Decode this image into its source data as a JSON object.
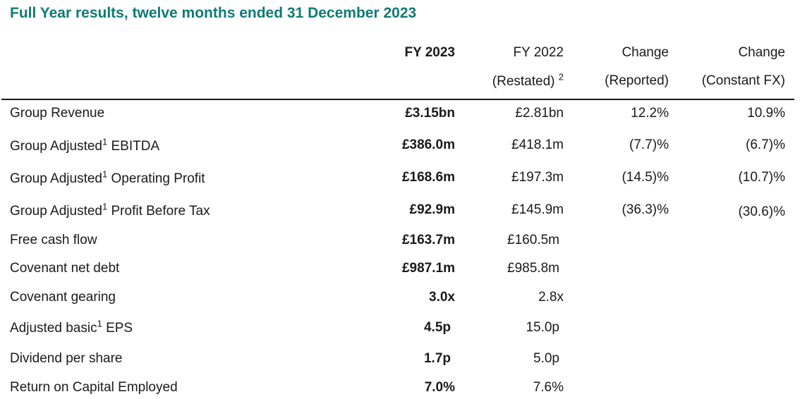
{
  "title": "Full Year results, twelve months ended 31 December 2023",
  "columns": {
    "fy2023": "FY 2023",
    "fy2022": "FY 2022",
    "fy2022_sub": "(Restated)",
    "fy2022_sup": "2",
    "change_rep": "Change",
    "change_rep_sub": "(Reported)",
    "change_cfx": "Change",
    "change_cfx_sub": "(Constant FX)"
  },
  "rows": [
    {
      "label": "Group Revenue",
      "sup": "",
      "label_suffix": "",
      "fy2023": "£3.15bn",
      "fy2022": "£2.81bn",
      "change_reported": "12.2%",
      "change_constant_fx": "10.9%"
    },
    {
      "label": "Group Adjusted",
      "sup": "1",
      "label_suffix": " EBITDA",
      "fy2023": "£386.0m",
      "fy2022": "£418.1m",
      "change_reported": "(7.7)%",
      "change_constant_fx": "(6.7)%"
    },
    {
      "label": "Group Adjusted",
      "sup": "1",
      "label_suffix": " Operating Profit",
      "fy2023": "£168.6m",
      "fy2022": "£197.3m",
      "change_reported": "(14.5)%",
      "change_constant_fx": "(10.7)%"
    },
    {
      "label": "Group Adjusted",
      "sup": "1",
      "label_suffix": " Profit Before Tax",
      "fy2023": "£92.9m",
      "fy2022": "£145.9m",
      "change_reported": "(36.3)%",
      "change_constant_fx": "(30.6)%"
    },
    {
      "label": "Free cash flow",
      "sup": "",
      "label_suffix": "",
      "fy2023": "£163.7m",
      "fy2022": "£160.5m",
      "change_reported": "",
      "change_constant_fx": ""
    },
    {
      "label": "Covenant net debt",
      "sup": "",
      "label_suffix": "",
      "fy2023": "£987.1m",
      "fy2022": "£985.8m",
      "change_reported": "",
      "change_constant_fx": ""
    },
    {
      "label": "Covenant gearing",
      "sup": "",
      "label_suffix": "",
      "fy2023": "3.0x",
      "fy2022": "2.8x",
      "change_reported": "",
      "change_constant_fx": ""
    },
    {
      "label": "Adjusted basic",
      "sup": "1",
      "label_suffix": " EPS",
      "fy2023": "4.5p",
      "fy2022": "15.0p",
      "change_reported": "",
      "change_constant_fx": ""
    },
    {
      "label": "Dividend per share",
      "sup": "",
      "label_suffix": "",
      "fy2023": "1.7p",
      "fy2022": "5.0p",
      "change_reported": "",
      "change_constant_fx": ""
    },
    {
      "label": "Return on Capital Employed",
      "sup": "",
      "label_suffix": "",
      "fy2023": "7.0%",
      "fy2022": "7.6%",
      "change_reported": "",
      "change_constant_fx": ""
    }
  ]
}
